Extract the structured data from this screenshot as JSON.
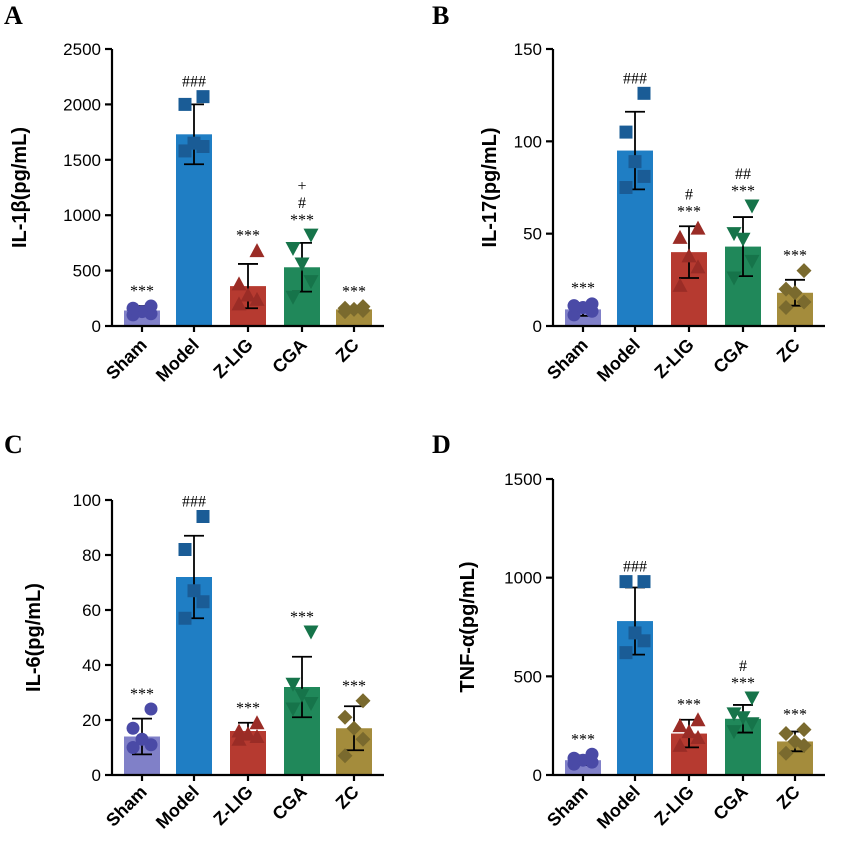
{
  "colors": {
    "Sham": "#8080c8",
    "Model": "#1f7ec4",
    "Z-LIG": "#b63a30",
    "CGA": "#20885a",
    "ZC": "#a48c3c"
  },
  "marker_colors": {
    "Sham": "#4a4aa6",
    "Model": "#1a5c96",
    "Z-LIG": "#9a2c26",
    "CGA": "#16744a",
    "ZC": "#7a6a2e"
  },
  "markers": {
    "Sham": "circle",
    "Model": "square",
    "Z-LIG": "triangle-up",
    "CGA": "triangle-down",
    "ZC": "diamond"
  },
  "chart_data": [
    {
      "type": "bar",
      "panel": "A",
      "ylabel": "IL-1β(pg/mL)",
      "ylim": [
        0,
        2500
      ],
      "yticks": [
        0,
        500,
        1000,
        1500,
        2000,
        2500
      ],
      "categories": [
        "Sham",
        "Model",
        "Z-LIG",
        "CGA",
        "ZC"
      ],
      "values": [
        140,
        1730,
        360,
        530,
        150
      ],
      "sd": [
        40,
        270,
        200,
        220,
        20
      ],
      "points": [
        [
          100,
          110,
          130,
          160,
          180
        ],
        [
          1580,
          1620,
          1650,
          2000,
          2070
        ],
        [
          200,
          240,
          280,
          380,
          680
        ],
        [
          260,
          400,
          560,
          700,
          820
        ],
        [
          130,
          140,
          150,
          160,
          175
        ]
      ],
      "significance": [
        "***",
        "###",
        "***",
        "+\n#\n***",
        "***"
      ]
    },
    {
      "type": "bar",
      "panel": "B",
      "ylabel": "IL-17(pg/mL)",
      "ylim": [
        0,
        150
      ],
      "yticks": [
        0,
        50,
        100,
        150
      ],
      "categories": [
        "Sham",
        "Model",
        "Z-LIG",
        "CGA",
        "ZC"
      ],
      "values": [
        9,
        95,
        40,
        43,
        18
      ],
      "sd": [
        3.5,
        21,
        14,
        16,
        7
      ],
      "points": [
        [
          6,
          8,
          10,
          11,
          12
        ],
        [
          75,
          81,
          89,
          105,
          126
        ],
        [
          22,
          32,
          38,
          48,
          53
        ],
        [
          26,
          35,
          47,
          50,
          65
        ],
        [
          10,
          13,
          18,
          20,
          30
        ]
      ],
      "significance": [
        "***",
        "###",
        "#\n***",
        "##\n***",
        "***"
      ]
    },
    {
      "type": "bar",
      "panel": "C",
      "ylabel": "IL-6(pg/mL)",
      "ylim": [
        0,
        100
      ],
      "yticks": [
        0,
        20,
        40,
        60,
        80,
        100
      ],
      "categories": [
        "Sham",
        "Model",
        "Z-LIG",
        "CGA",
        "ZC"
      ],
      "values": [
        14,
        72,
        16,
        32,
        17
      ],
      "sd": [
        6.5,
        15,
        3,
        11,
        8
      ],
      "points": [
        [
          10,
          11,
          13,
          17,
          24
        ],
        [
          57,
          63,
          67,
          82,
          94
        ],
        [
          13,
          14,
          15,
          16,
          19
        ],
        [
          24,
          26,
          29,
          33,
          52
        ],
        [
          7,
          13,
          17,
          21,
          27
        ]
      ],
      "significance": [
        "***",
        "###",
        "***",
        "***",
        "***"
      ]
    },
    {
      "type": "bar",
      "panel": "D",
      "ylabel": "TNF-α(pg/mL)",
      "ylim": [
        0,
        1500
      ],
      "yticks": [
        0,
        500,
        1000,
        1500
      ],
      "categories": [
        "Sham",
        "Model",
        "Z-LIG",
        "CGA",
        "ZC"
      ],
      "values": [
        75,
        780,
        210,
        285,
        170
      ],
      "sd": [
        25,
        170,
        70,
        70,
        50
      ],
      "points": [
        [
          55,
          65,
          75,
          85,
          105
        ],
        [
          620,
          680,
          720,
          980,
          980
        ],
        [
          150,
          190,
          220,
          250,
          280
        ],
        [
          220,
          260,
          290,
          310,
          390
        ],
        [
          110,
          150,
          170,
          210,
          230
        ]
      ],
      "significance": [
        "***",
        "###",
        "***",
        "#\n***",
        "***"
      ]
    }
  ]
}
